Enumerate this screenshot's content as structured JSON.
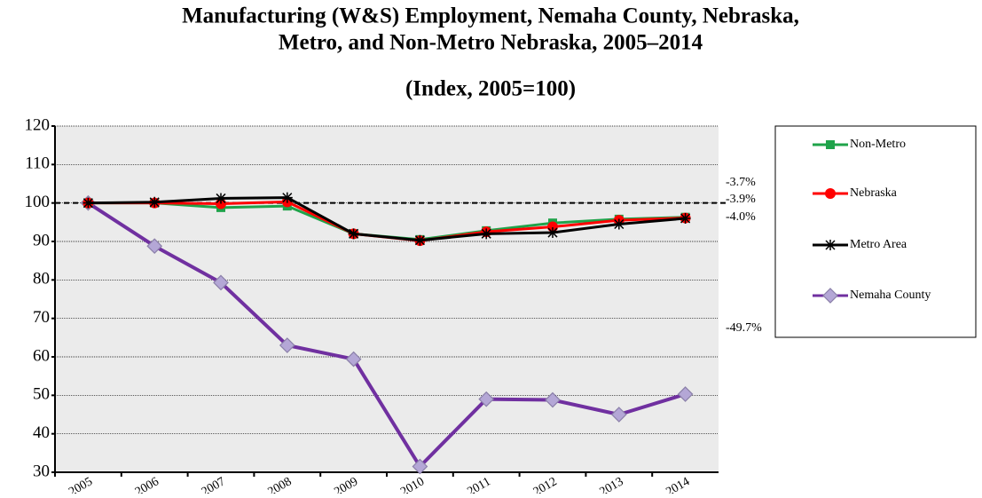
{
  "chart_data": {
    "type": "line",
    "title": [
      "Manufacturing (W&S) Employment, Nemaha County, Nebraska,",
      "Metro, and Non-Metro Nebraska,  2005–2014"
    ],
    "subtitle": "(Index, 2005=100)",
    "categories": [
      "2005",
      "2006",
      "2007",
      "2008",
      "2009",
      "2010",
      "2011",
      "2012",
      "2013",
      "2014"
    ],
    "series": [
      {
        "name": "Non-Metro",
        "color": "#1fa34a",
        "marker": "square",
        "values": [
          100,
          100,
          98.8,
          99.2,
          92,
          90.5,
          92.8,
          94.8,
          95.8,
          96.3
        ]
      },
      {
        "name": "Nebraska",
        "color": "#ff0000",
        "marker": "circle",
        "values": [
          100,
          100,
          99.8,
          100.3,
          92,
          90.2,
          92.5,
          93.8,
          95.5,
          96.1
        ]
      },
      {
        "name": "Metro Area",
        "color": "#000000",
        "marker": "asterisk",
        "values": [
          100,
          100.2,
          101.2,
          101.4,
          92,
          90.3,
          92,
          92.3,
          94.5,
          96
        ]
      },
      {
        "name": "Nemaha County",
        "color": "#7030a0",
        "marker": "diamond",
        "values": [
          100,
          88.8,
          79.3,
          63,
          59.4,
          31.5,
          49,
          48.8,
          45,
          50.3
        ]
      }
    ],
    "annotations": [
      "-3.7%",
      "-3.9%",
      "-4.0%",
      "-49.7%"
    ],
    "reference_line": 100,
    "ylim": [
      30,
      120
    ],
    "yticks": [
      30,
      40,
      50,
      60,
      70,
      80,
      90,
      100,
      110,
      120
    ],
    "grid": true,
    "legend": "right"
  }
}
